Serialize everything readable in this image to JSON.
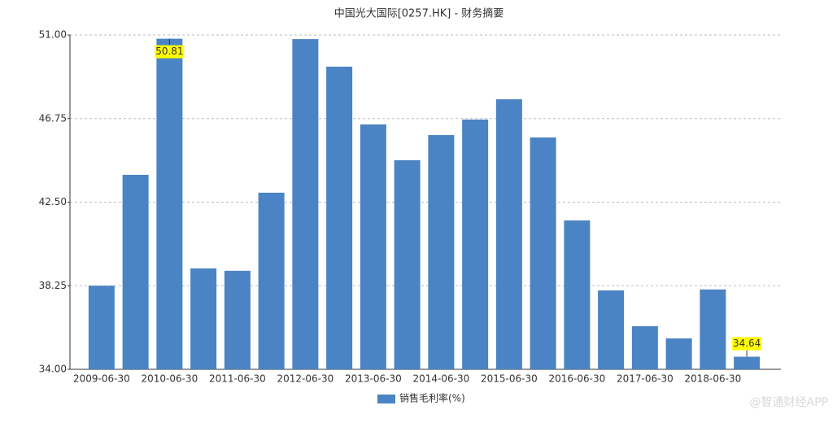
{
  "chart_data": {
    "type": "bar",
    "title": "中国光大国际[0257.HK] - 财务摘要",
    "categories": [
      "2009-06-30",
      null,
      "2010-06-30",
      null,
      "2011-06-30",
      null,
      "2012-06-30",
      null,
      "2013-06-30",
      null,
      "2014-06-30",
      null,
      "2015-06-30",
      null,
      "2016-06-30",
      null,
      "2017-06-30",
      null,
      "2018-06-30",
      null
    ],
    "series": [
      {
        "name": "销售毛利率(%)",
        "color": "#4a84c4",
        "values": [
          38.25,
          43.89,
          50.81,
          39.13,
          39.01,
          42.98,
          50.79,
          49.39,
          46.45,
          44.63,
          45.91,
          46.7,
          47.73,
          45.79,
          41.57,
          38.01,
          36.19,
          35.57,
          38.06,
          34.64
        ],
        "value_labels": [
          null,
          null,
          "50.81",
          null,
          null,
          null,
          null,
          null,
          null,
          null,
          null,
          null,
          null,
          null,
          null,
          null,
          null,
          null,
          null,
          "34.64"
        ]
      }
    ],
    "ylim": [
      34,
      51
    ],
    "yticks": [
      {
        "value": 34,
        "label": "34.00"
      },
      38.25,
      {
        "value": 42.5,
        "label": "42.50"
      },
      46.75,
      {
        "value": 51,
        "label": "51.00"
      }
    ],
    "grid": true,
    "legend": "bottom",
    "watermark": "@智通财经APP"
  }
}
